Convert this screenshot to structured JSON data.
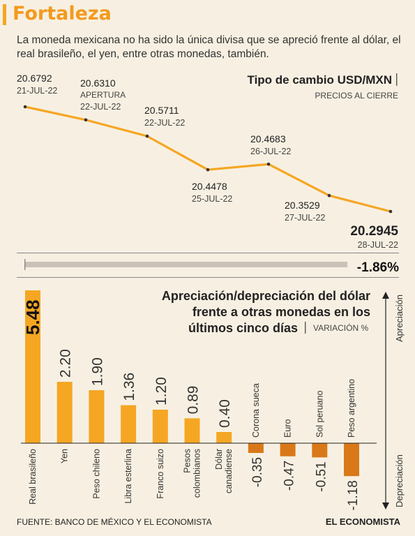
{
  "header": {
    "title": "Fortaleza",
    "subtitle": "La moneda mexicana no ha sido la única divisa que se apreció frente al dólar, el real brasileño, el yen, entre otras monedas, también."
  },
  "chart_data": [
    {
      "type": "line",
      "title": "Tipo de cambio USD/MXN",
      "subtitle": "PRECIOS AL CIERRE",
      "x": [
        "21-JUL-22",
        "22-JUL-22",
        "22-JUL-22",
        "25-JUL-22",
        "26-JUL-22",
        "27-JUL-22",
        "28-JUL-22"
      ],
      "values": [
        20.6792,
        20.631,
        20.5711,
        20.4478,
        20.4683,
        20.3529,
        20.2945
      ],
      "value_labels": [
        "20.6792",
        "20.6310",
        "20.5711",
        "20.4478",
        "20.4683",
        "20.3529",
        "20.2945"
      ],
      "notes": [
        "",
        "APERTURA",
        "",
        "",
        "",
        "",
        ""
      ],
      "change_label": "-1.86%",
      "color": "#f5a623"
    },
    {
      "type": "bar",
      "title_lines": [
        "Apreciación/depreciación del dólar",
        "frente a otras monedas en los",
        "últimos cinco días"
      ],
      "subtitle": "VARIACIÓN %",
      "categories": [
        [
          "Real brasileño"
        ],
        [
          "Yen"
        ],
        [
          "Peso chileno"
        ],
        [
          "Libra esterlina"
        ],
        [
          "Franco suizo"
        ],
        [
          "Pesos",
          "colombianos"
        ],
        [
          "Dólar",
          "canadiense"
        ],
        [
          "Corona sueca"
        ],
        [
          "Euro"
        ],
        [
          "Sol peruano"
        ],
        [
          "Peso argentino"
        ]
      ],
      "values": [
        5.48,
        2.2,
        1.9,
        1.36,
        1.2,
        0.89,
        0.4,
        -0.35,
        -0.47,
        -0.51,
        -1.18
      ],
      "value_labels": [
        "5.48",
        "2.20",
        "1.90",
        "1.36",
        "1.20",
        "0.89",
        "0.40",
        "-0.35",
        "-0.47",
        "-0.51",
        "-1.18"
      ],
      "axis_labels": {
        "up": "Apreciación",
        "down": "Depreciación"
      },
      "colors": {
        "positive": "#f5a623",
        "negative": "#d97819",
        "highlight": "#f5a623"
      }
    }
  ],
  "footer": {
    "source": "FUENTE: BANCO DE MÉXICO Y EL ECONOMISTA",
    "logo": "EL ECONOMISTA"
  }
}
